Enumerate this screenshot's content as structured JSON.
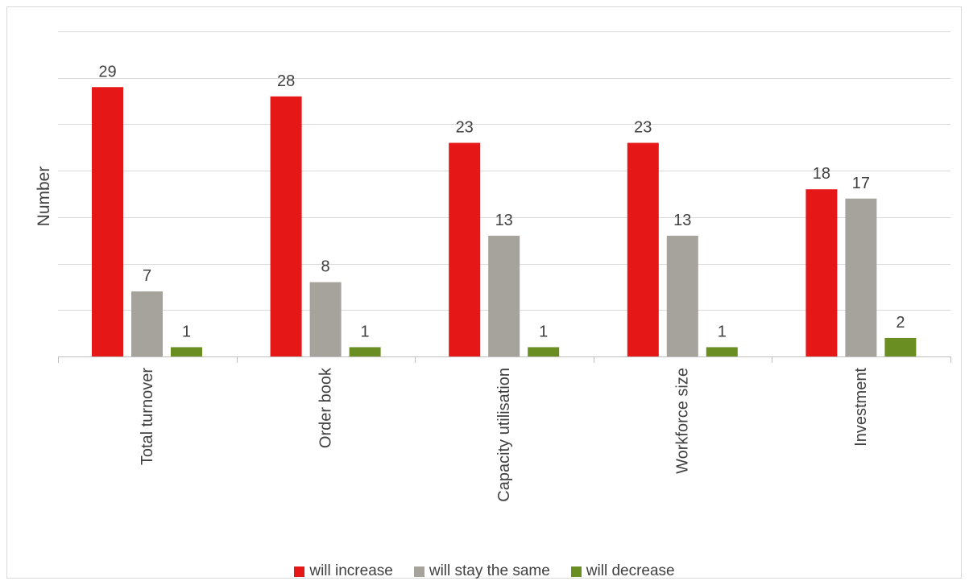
{
  "chart_data": {
    "type": "bar",
    "title": "",
    "xlabel": "",
    "ylabel": "Number",
    "ylim": [
      0,
      35
    ],
    "grid_step": 5,
    "y_tick_labels_shown": false,
    "grid": true,
    "legend_position": "bottom",
    "categories": [
      "Total turnover",
      "Order book",
      "Capacity utilisation",
      "Workforce size",
      "Investment"
    ],
    "series": [
      {
        "name": "will increase",
        "color": "#e51717",
        "values": [
          29,
          28,
          23,
          23,
          18
        ]
      },
      {
        "name": "will stay the same",
        "color": "#a6a39d",
        "values": [
          7,
          8,
          13,
          13,
          17
        ]
      },
      {
        "name": "will decrease",
        "color": "#6b8e23",
        "values": [
          1,
          1,
          1,
          1,
          2
        ]
      }
    ]
  }
}
